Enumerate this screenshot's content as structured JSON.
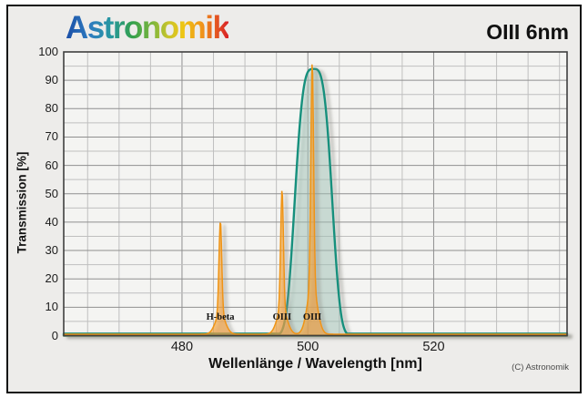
{
  "header": {
    "logo_text": "Astronomik",
    "title": "OIII 6nm"
  },
  "footer": {
    "copyright": "(C) Astronomik"
  },
  "chart_data": {
    "type": "line",
    "title": "OIII 6nm",
    "xlabel": "Wellenlänge / Wavelength [nm]",
    "ylabel": "Transmission [%]",
    "x_range": [
      461.2,
      541.2
    ],
    "y_range": [
      0,
      100
    ],
    "x_major_ticks": [
      480,
      500,
      520
    ],
    "x_minor_step_nm": 5,
    "y_tick_labels": [
      0,
      10,
      20,
      30,
      40,
      50,
      60,
      70,
      80,
      90,
      100
    ],
    "y_minor_step_pct": 5,
    "grid": true,
    "legend": "none",
    "filter_curve": {
      "name": "filter-transmission-curve",
      "color": "#17907d",
      "fill": "rgba(165,205,193,0.40)",
      "peak_transmission_pct": 94,
      "center_wavelength_nm": 500.9,
      "fwhm_nm": 6,
      "baseline_pct": 0.7,
      "shape_power": 1.7
    },
    "emission_lines": {
      "color": "#ef9414",
      "fill": "rgba(242,158,45,0.62)",
      "baseline_pct": 0.5,
      "lines": [
        {
          "label": "H-beta",
          "wavelength_nm": 486.1,
          "transmission_pct": 40
        },
        {
          "label": "OIII",
          "wavelength_nm": 495.9,
          "transmission_pct": 51
        },
        {
          "label": "OIII",
          "wavelength_nm": 500.7,
          "transmission_pct": 96
        }
      ]
    },
    "grid_colors": {
      "minor": "#bfbfbf",
      "major": "#8f8f8f",
      "border": "#3f3f3f"
    },
    "plot_bg": "#f4f4f2",
    "shadow_color": "#8a8a82"
  }
}
